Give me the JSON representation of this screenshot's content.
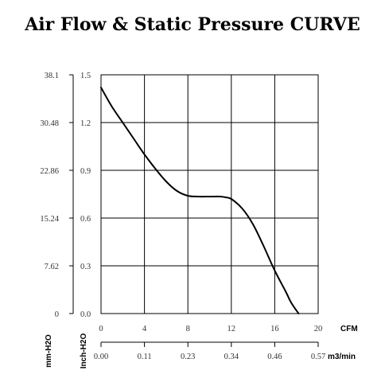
{
  "chart_data": {
    "type": "line",
    "title": "Air Flow & Static Pressure CURVE",
    "x_axes": [
      {
        "unit": "CFM",
        "ticks": [
          "0",
          "4",
          "8",
          "12",
          "16",
          "20"
        ],
        "range": [
          0,
          20
        ]
      },
      {
        "unit": "m3/min",
        "ticks": [
          "0.00",
          "0.11",
          "0.23",
          "0.34",
          "0.46",
          "0.57"
        ],
        "range": [
          0,
          0.57
        ]
      }
    ],
    "y_axes": [
      {
        "unit": "mm-H2O",
        "ticks": [
          "0",
          "7.62",
          "15.24",
          "22.86",
          "30.48",
          "38.1"
        ],
        "range": [
          0,
          38.1
        ]
      },
      {
        "unit": "Inch-H2O",
        "ticks": [
          "0.0",
          "0.3",
          "0.6",
          "0.9",
          "1.2",
          "1.5"
        ],
        "range": [
          0,
          1.5
        ]
      }
    ],
    "grid": true,
    "series": [
      {
        "x": [
          0,
          1,
          2,
          3,
          4,
          5,
          6,
          7,
          8,
          9,
          10,
          11,
          11.5,
          12,
          13,
          14,
          15,
          16,
          17,
          17.5,
          18.2
        ],
        "y": [
          1.42,
          1.3,
          1.2,
          1.1,
          1.0,
          0.91,
          0.83,
          0.77,
          0.74,
          0.735,
          0.735,
          0.735,
          0.73,
          0.72,
          0.66,
          0.56,
          0.42,
          0.27,
          0.14,
          0.07,
          0.0
        ]
      }
    ]
  }
}
